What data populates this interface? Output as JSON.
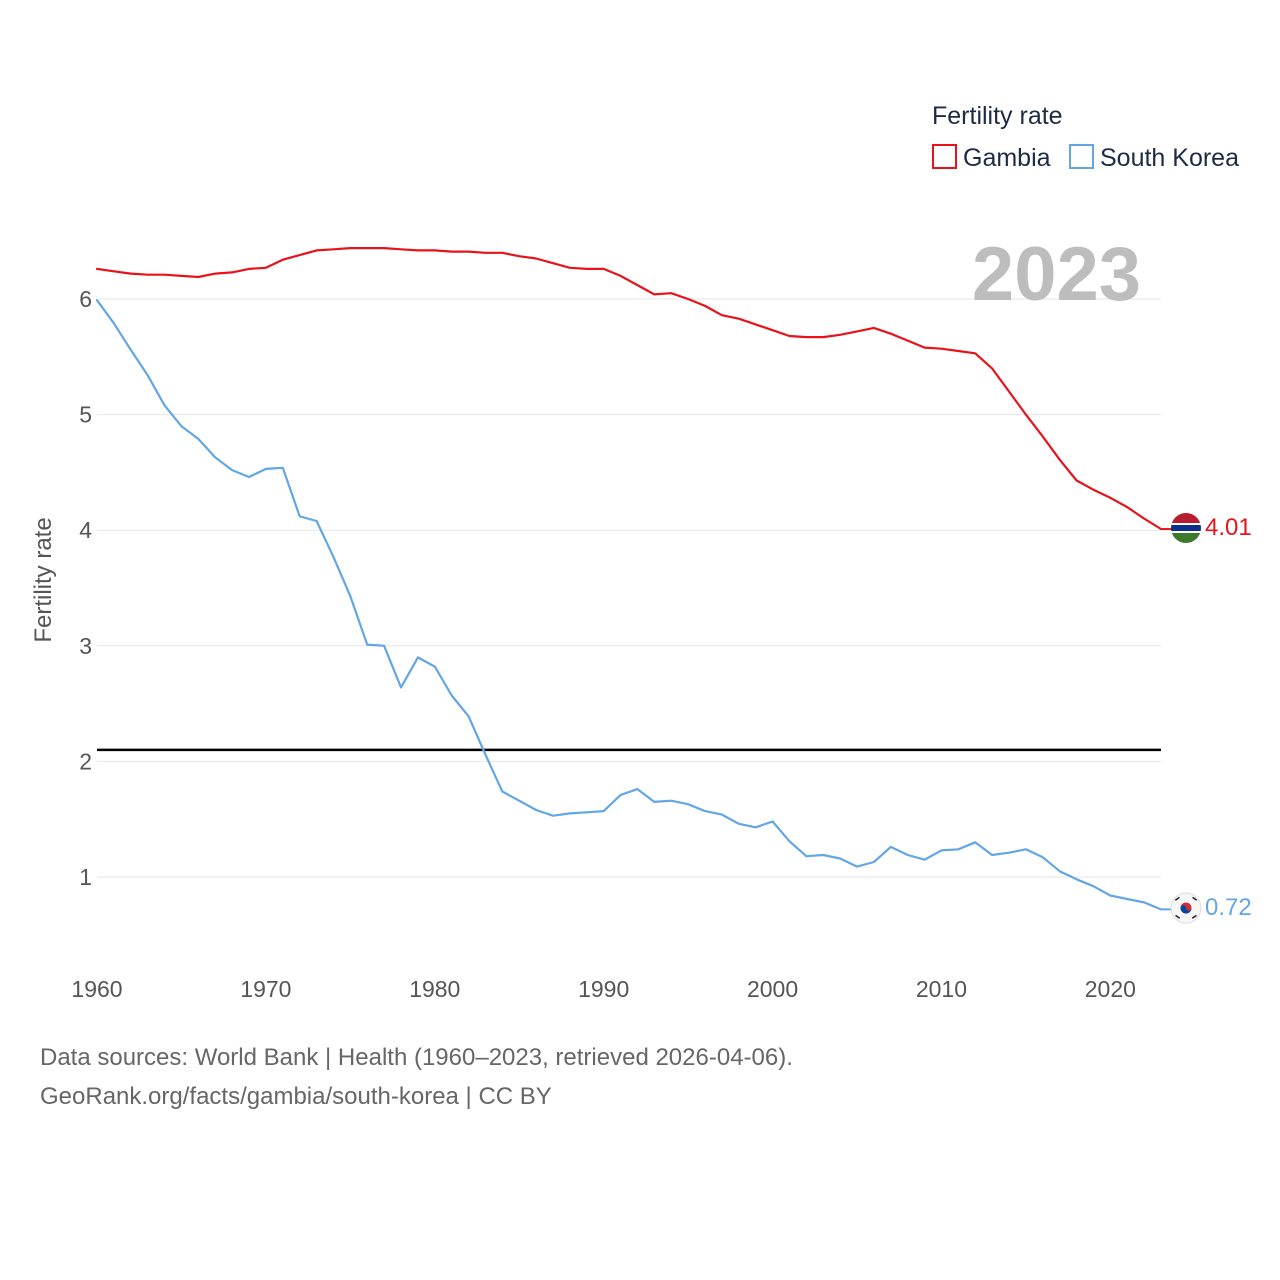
{
  "chart_data": {
    "type": "line",
    "ylabel": "Fertility rate",
    "xlabel": "",
    "xlim": [
      1960,
      2023
    ],
    "ylim": [
      0.5,
      6.5
    ],
    "x_ticks": [
      1960,
      1970,
      1980,
      1990,
      2000,
      2010,
      2020
    ],
    "y_ticks": [
      1,
      2,
      3,
      4,
      5,
      6
    ],
    "grid": true,
    "legend": {
      "title": "Fertility rate",
      "position": "top-right"
    },
    "current_year": "2023",
    "reference_line": {
      "y": 2.1,
      "color": "#000000"
    },
    "x": [
      1960,
      1961,
      1962,
      1963,
      1964,
      1965,
      1966,
      1967,
      1968,
      1969,
      1970,
      1971,
      1972,
      1973,
      1974,
      1975,
      1976,
      1977,
      1978,
      1979,
      1980,
      1981,
      1982,
      1983,
      1984,
      1985,
      1986,
      1987,
      1988,
      1989,
      1990,
      1991,
      1992,
      1993,
      1994,
      1995,
      1996,
      1997,
      1998,
      1999,
      2000,
      2001,
      2002,
      2003,
      2004,
      2005,
      2006,
      2007,
      2008,
      2009,
      2010,
      2011,
      2012,
      2013,
      2014,
      2015,
      2016,
      2017,
      2018,
      2019,
      2020,
      2021,
      2022,
      2023
    ],
    "series": [
      {
        "name": "Gambia",
        "color": "#e8131a",
        "end_label": "4.01",
        "flag": "gambia-flag",
        "values": [
          6.26,
          6.24,
          6.22,
          6.21,
          6.21,
          6.2,
          6.19,
          6.22,
          6.23,
          6.26,
          6.27,
          6.34,
          6.38,
          6.42,
          6.43,
          6.44,
          6.44,
          6.44,
          6.43,
          6.42,
          6.42,
          6.41,
          6.41,
          6.4,
          6.4,
          6.37,
          6.35,
          6.31,
          6.27,
          6.26,
          6.26,
          6.2,
          6.12,
          6.04,
          6.05,
          6.0,
          5.94,
          5.86,
          5.83,
          5.78,
          5.73,
          5.68,
          5.67,
          5.67,
          5.69,
          5.72,
          5.75,
          5.7,
          5.64,
          5.58,
          5.57,
          5.55,
          5.53,
          5.4,
          5.2,
          5.0,
          4.81,
          4.61,
          4.43,
          4.35,
          4.28,
          4.2,
          4.1,
          4.01
        ]
      },
      {
        "name": "South Korea",
        "color": "#62a6e6",
        "end_label": "0.72",
        "flag": "south-korea-flag",
        "values": [
          5.99,
          5.79,
          5.56,
          5.34,
          5.08,
          4.9,
          4.79,
          4.63,
          4.52,
          4.46,
          4.53,
          4.54,
          4.12,
          4.08,
          3.77,
          3.43,
          3.01,
          3.0,
          2.64,
          2.9,
          2.82,
          2.57,
          2.39,
          2.06,
          1.74,
          1.66,
          1.58,
          1.53,
          1.55,
          1.56,
          1.57,
          1.71,
          1.76,
          1.65,
          1.66,
          1.63,
          1.57,
          1.54,
          1.46,
          1.43,
          1.48,
          1.31,
          1.18,
          1.19,
          1.16,
          1.09,
          1.13,
          1.26,
          1.19,
          1.15,
          1.23,
          1.24,
          1.3,
          1.19,
          1.21,
          1.24,
          1.17,
          1.05,
          0.98,
          0.92,
          0.84,
          0.81,
          0.78,
          0.72
        ]
      }
    ]
  },
  "footer": {
    "line1": "Data sources: World Bank | Health (1960–2023, retrieved 2026-04-06).",
    "line2": "GeoRank.org/facts/gambia/south-korea | CC BY"
  }
}
